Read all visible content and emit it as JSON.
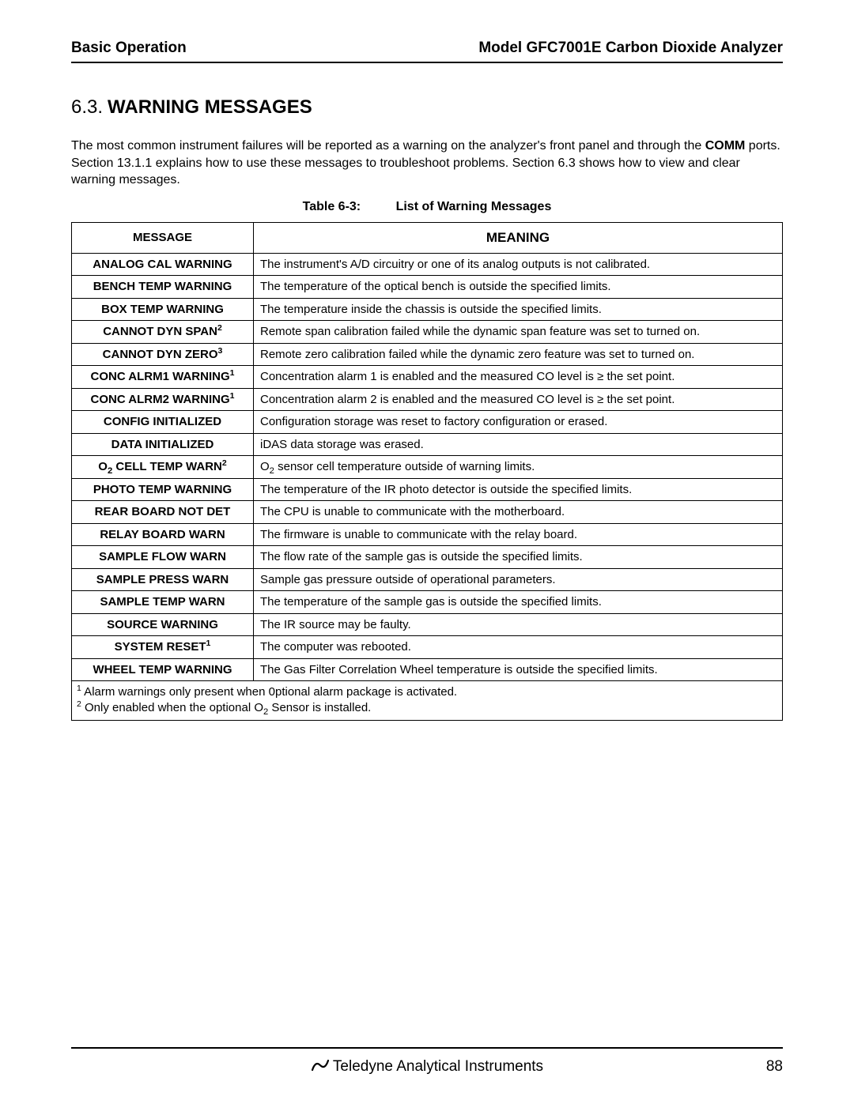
{
  "header": {
    "left": "Basic Operation",
    "right": "Model GFC7001E Carbon Dioxide Analyzer"
  },
  "section": {
    "number": "6.3.",
    "title": "WARNING MESSAGES"
  },
  "intro": {
    "pre": "The most common instrument failures will be reported as a warning on the analyzer's front panel and through the ",
    "bold": "COMM",
    "post": " ports.  Section 13.1.1 explains how to use these messages to troubleshoot problems.  Section 6.3 shows how to view and clear warning messages."
  },
  "table_caption": {
    "label": "Table 6-3:",
    "title": "List of Warning Messages"
  },
  "columns": {
    "message": "MESSAGE",
    "meaning": "MEANING"
  },
  "rows": [
    {
      "msg": "ANALOG CAL WARNING",
      "sup": "",
      "meaning": "The instrument's A/D circuitry or one of its analog outputs is not calibrated."
    },
    {
      "msg": "BENCH TEMP WARNING",
      "sup": "",
      "meaning": "The temperature of the optical bench is outside the specified limits."
    },
    {
      "msg": "BOX TEMP WARNING",
      "sup": "",
      "meaning": "The temperature inside the chassis is outside the specified limits."
    },
    {
      "msg": "CANNOT DYN SPAN",
      "sup": "2",
      "meaning": "Remote span calibration failed while the dynamic span feature was set to turned on."
    },
    {
      "msg": "CANNOT DYN ZERO",
      "sup": "3",
      "meaning": "Remote zero calibration failed while the dynamic zero feature was set to turned on."
    },
    {
      "msg": "CONC ALRM1 WARNING",
      "sup": "1",
      "meaning": "Concentration alarm 1 is enabled and the measured CO level is ≥ the set point."
    },
    {
      "msg": "CONC ALRM2 WARNING",
      "sup": "1",
      "meaning": "Concentration alarm 2 is enabled and the measured CO level is ≥ the set point."
    },
    {
      "msg": "CONFIG INITIALIZED",
      "sup": "",
      "meaning": "Configuration storage was reset to factory configuration or erased."
    },
    {
      "msg": "DATA INITIALIZED",
      "sup": "",
      "meaning": "iDAS data storage was erased."
    },
    {
      "msg": "O2_CELL_TEMP_WARN",
      "sup": "2",
      "meaning": "O2_sensor cell temperature outside of warning limits.",
      "o2msg": true,
      "o2meaning": true
    },
    {
      "msg": "PHOTO TEMP WARNING",
      "sup": "",
      "meaning": "The temperature of the IR photo detector is outside the specified limits."
    },
    {
      "msg": "REAR BOARD NOT DET",
      "sup": "",
      "meaning": "The CPU is unable to communicate with the motherboard."
    },
    {
      "msg": "RELAY BOARD WARN",
      "sup": "",
      "meaning": "The firmware is unable to communicate with the relay board."
    },
    {
      "msg": "SAMPLE FLOW WARN",
      "sup": "",
      "meaning": "The flow rate of the sample gas is outside the specified limits."
    },
    {
      "msg": "SAMPLE PRESS WARN",
      "sup": "",
      "meaning": "Sample gas pressure outside of operational parameters."
    },
    {
      "msg": "SAMPLE TEMP WARN",
      "sup": "",
      "meaning": "The temperature of the sample gas is outside the specified limits."
    },
    {
      "msg": "SOURCE WARNING",
      "sup": "",
      "meaning": "The IR source may be faulty."
    },
    {
      "msg": "SYSTEM RESET",
      "sup": "1",
      "meaning": "The computer was rebooted."
    },
    {
      "msg": "WHEEL TEMP WARNING",
      "sup": "",
      "meaning": "The Gas Filter Correlation Wheel temperature is outside the specified limits."
    }
  ],
  "footnotes": {
    "f1_sup": "1",
    "f1_text": " Alarm warnings only present when 0ptional alarm package is activated.",
    "f2_sup": "2",
    "f2_pre": " Only enabled when the optional O",
    "f2_sub": "2",
    "f2_post": " Sensor is installed."
  },
  "footer": {
    "brand": "Teledyne Analytical Instruments",
    "page": "88"
  },
  "style": {
    "page_bg": "#ffffff",
    "text_color": "#000000",
    "rule_color": "#000000",
    "font_family": "Arial, Helvetica, sans-serif"
  }
}
